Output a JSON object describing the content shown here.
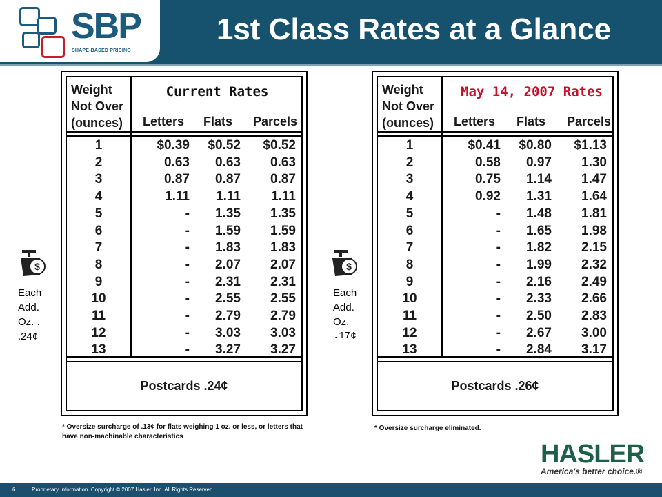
{
  "header": {
    "logo_text": "SBP",
    "logo_subtitle": "SHAPE-BASED PRICING",
    "title": "1st Class Rates at a Glance"
  },
  "left_table": {
    "weight_header": [
      "Weight",
      "Not Over",
      "(ounces)"
    ],
    "title": "Current Rates",
    "columns": [
      "Letters",
      "Flats",
      "Parcels"
    ],
    "rows": [
      [
        "1",
        "$0.39",
        "$0.52",
        "$0.52"
      ],
      [
        "2",
        "0.63",
        "0.63",
        "0.63"
      ],
      [
        "3",
        "0.87",
        "0.87",
        "0.87"
      ],
      [
        "4",
        "1.11",
        "1.11",
        "1.11"
      ],
      [
        "5",
        "-",
        "1.35",
        "1.35"
      ],
      [
        "6",
        "-",
        "1.59",
        "1.59"
      ],
      [
        "7",
        "-",
        "1.83",
        "1.83"
      ],
      [
        "8",
        "-",
        "2.07",
        "2.07"
      ],
      [
        "9",
        "-",
        "2.31",
        "2.31"
      ],
      [
        "10",
        "-",
        "2.55",
        "2.55"
      ],
      [
        "11",
        "-",
        "2.79",
        "2.79"
      ],
      [
        "12",
        "-",
        "3.03",
        "3.03"
      ],
      [
        "13",
        "-",
        "3.27",
        "3.27"
      ]
    ],
    "postcards": "Postcards .24¢",
    "each_add": [
      "Each",
      "Add.",
      "Oz. .",
      ".24¢"
    ],
    "note": "* Oversize surcharge of .13¢  for flats weighing 1 oz. or less, or letters that have non-machinable characteristics"
  },
  "right_table": {
    "weight_header": [
      "Weight",
      "Not Over",
      "(ounces)"
    ],
    "title": "May 14, 2007 Rates",
    "columns": [
      "Letters",
      "Flats",
      "Parcels"
    ],
    "rows": [
      [
        "1",
        "$0.41",
        "$0.80",
        "$1.13"
      ],
      [
        "2",
        "0.58",
        "0.97",
        "1.30"
      ],
      [
        "3",
        "0.75",
        "1.14",
        "1.47"
      ],
      [
        "4",
        "0.92",
        "1.31",
        "1.64"
      ],
      [
        "5",
        "-",
        "1.48",
        "1.81"
      ],
      [
        "6",
        "-",
        "1.65",
        "1.98"
      ],
      [
        "7",
        "-",
        "1.82",
        "2.15"
      ],
      [
        "8",
        "-",
        "1.99",
        "2.32"
      ],
      [
        "9",
        "-",
        "2.16",
        "2.49"
      ],
      [
        "10",
        "-",
        "2.33",
        "2.66"
      ],
      [
        "11",
        "-",
        "2.50",
        "2.83"
      ],
      [
        "12",
        "-",
        "2.67",
        "3.00"
      ],
      [
        "13",
        "-",
        "2.84",
        "3.17"
      ]
    ],
    "postcards": "Postcards .26¢",
    "each_add": [
      "Each",
      "Add.",
      "Oz.",
      ".17¢"
    ],
    "note": "* Oversize surcharge eliminated."
  },
  "brand": {
    "name": "HASLER",
    "tagline": "America's better choice.®"
  },
  "footer": {
    "page": "6",
    "text": "Proprietary Information. Copyright © 2007 Hasler, Inc. All Rights Reserved"
  },
  "colors": {
    "header_bg": "#16526e",
    "red_title": "#c8102e",
    "hasler_green": "#1d5f48"
  }
}
